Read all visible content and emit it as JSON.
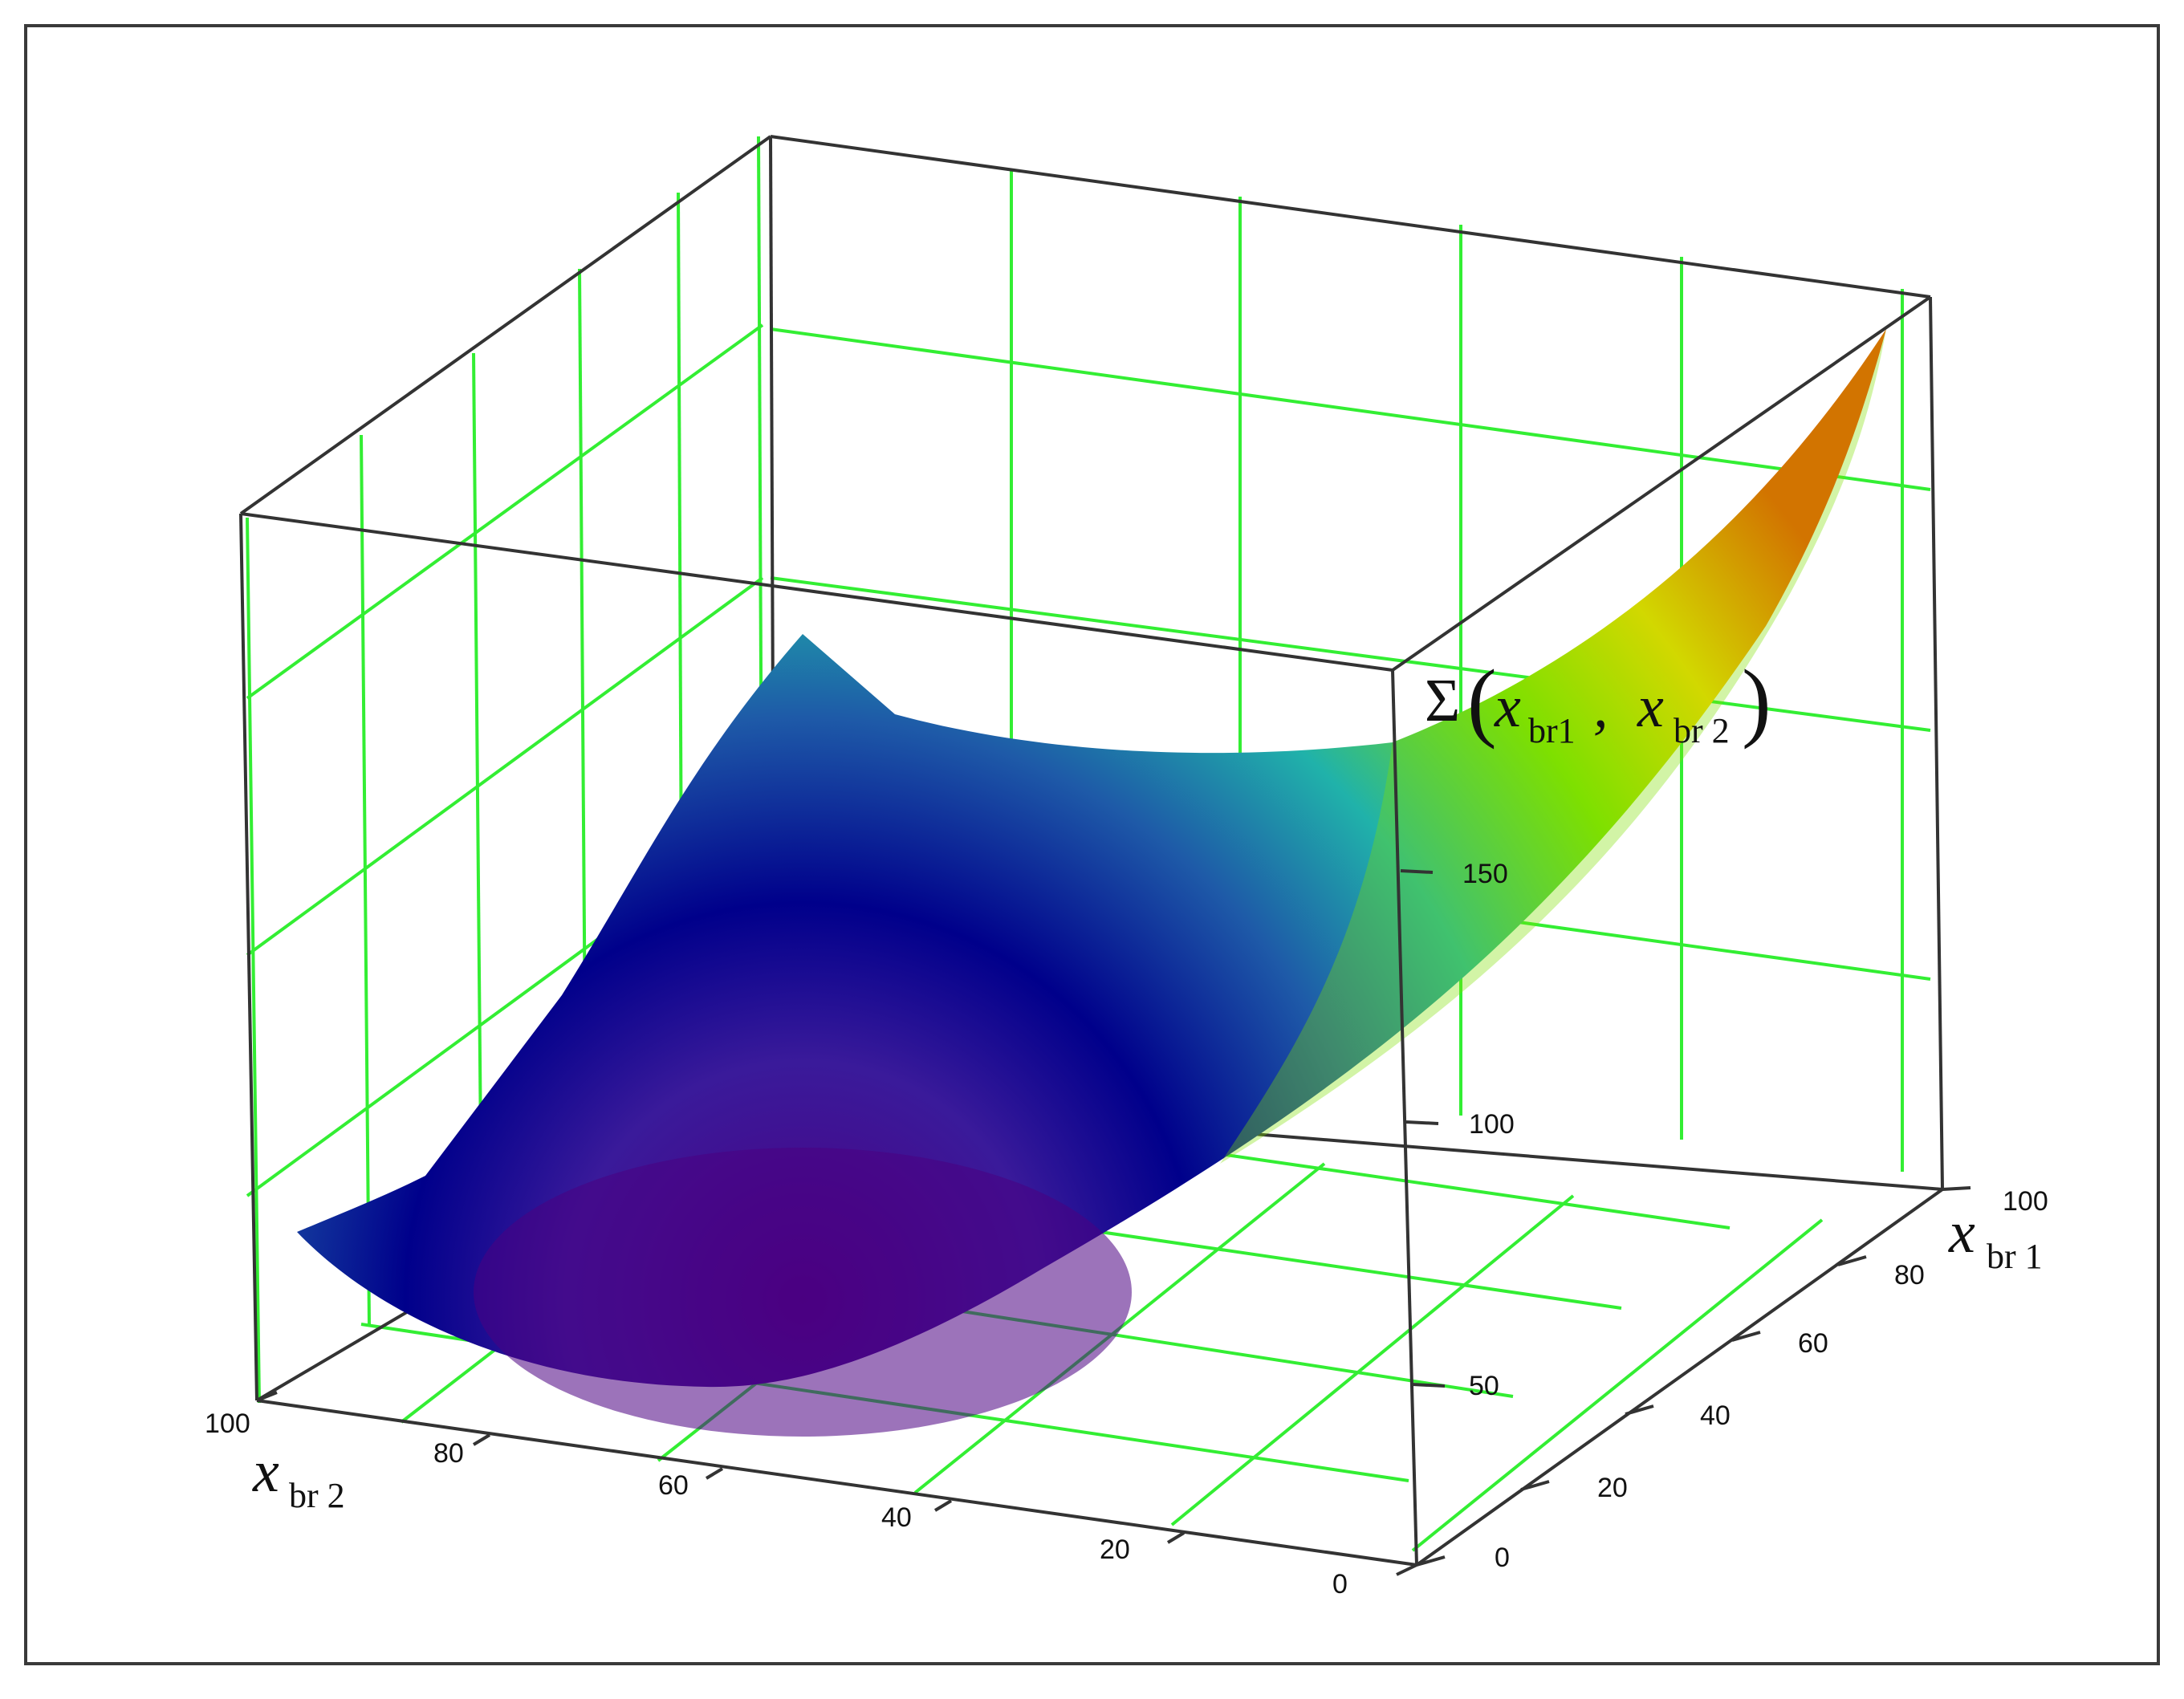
{
  "chart_data": {
    "type": "surface",
    "z_label": {
      "symbol": "Σ",
      "arg1_var": "x",
      "arg1_sub": "br1",
      "comma": ",",
      "arg2_var": "x",
      "arg2_sub": "br 2"
    },
    "x_axis": {
      "var": "x",
      "sub": "br 2",
      "ticks": [
        "100",
        "80",
        "60",
        "40",
        "20",
        "0"
      ],
      "range": [
        0,
        100
      ]
    },
    "y_axis": {
      "var": "x",
      "sub": "br 1",
      "ticks": [
        "0",
        "20",
        "40",
        "60",
        "80",
        "100"
      ],
      "range": [
        0,
        100
      ]
    },
    "z_axis": {
      "ticks": [
        "50",
        "100",
        "150"
      ],
      "range": [
        0,
        215
      ]
    },
    "grid": true,
    "grid_color": "#33ee33",
    "box_color": "#333333",
    "colormap": [
      "#4b0082",
      "#00008b",
      "#1e5aa8",
      "#20b2aa",
      "#7fe000",
      "#ffd400",
      "#ff3b00"
    ],
    "surface_samples": {
      "xbr2": [
        0,
        25,
        50,
        75,
        100
      ],
      "xbr1": [
        0,
        25,
        50,
        75,
        100
      ],
      "z_rows_by_xbr1": [
        [
          85,
          58,
          48,
          55,
          80
        ],
        [
          92,
          60,
          45,
          50,
          70
        ],
        [
          112,
          78,
          62,
          62,
          84
        ],
        [
          150,
          115,
          98,
          98,
          120
        ],
        [
          215,
          175,
          150,
          150,
          175
        ]
      ]
    }
  }
}
